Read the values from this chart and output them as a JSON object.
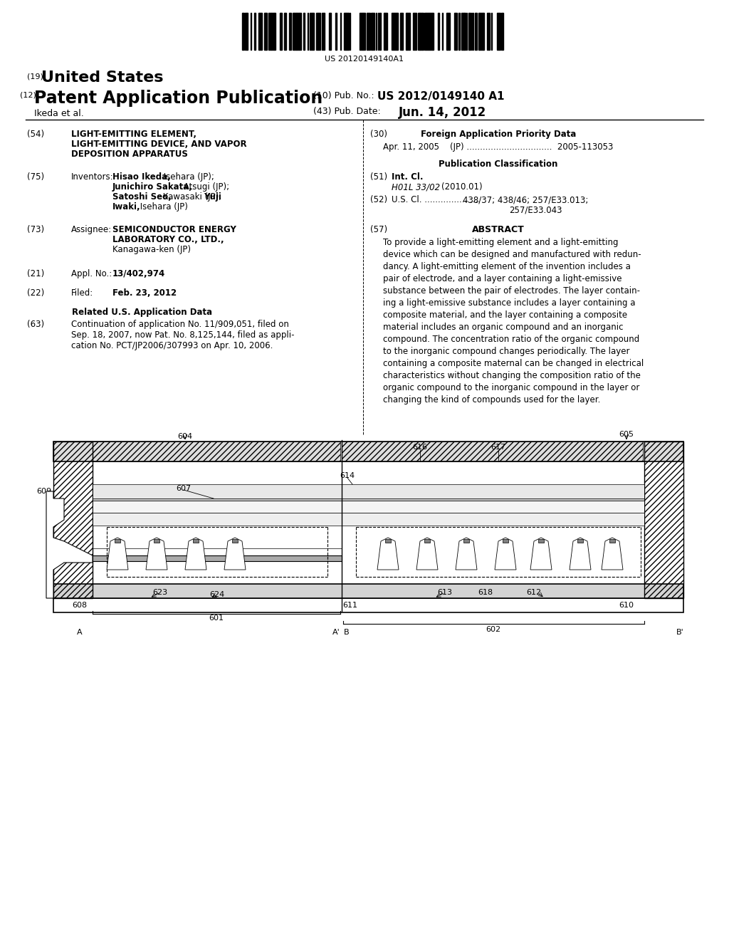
{
  "background_color": "#ffffff",
  "barcode_text": "US 20120149140A1",
  "patent_number_label": "(19)",
  "patent_number_text": "United States",
  "pub_type_label": "(12)",
  "pub_type_text": "Patent Application Publication",
  "pub_no_label": "(10) Pub. No.:",
  "pub_no_value": "US 2012/0149140 A1",
  "authors_label": "Ikeda et al.",
  "pub_date_label": "(43) Pub. Date:",
  "pub_date_value": "Jun. 14, 2012",
  "title_label": "(54)",
  "title_text": "LIGHT-EMITTING ELEMENT,\nLIGHT-EMITTING DEVICE, AND VAPOR\nDEPOSITION APPARATUS",
  "foreign_app_label": "(30)",
  "foreign_app_title": "Foreign Application Priority Data",
  "foreign_app_entry": "Apr. 11, 2005    (JP) ................................  2005-113053",
  "pub_class_title": "Publication Classification",
  "intcl_label": "(51) Int. Cl.",
  "intcl_value": "H01L 33/02",
  "intcl_date": "(2010.01)",
  "uscl_label": "(52) U.S. Cl. .....................",
  "uscl_value": "438/37; 438/46; 257/E33.013;\n                                          257/E33.043",
  "abstract_label": "(57)",
  "abstract_title": "ABSTRACT",
  "abstract_text": "To provide a light-emitting element and a light-emitting\ndevice which can be designed and manufactured with redun-\ndancy. A light-emitting element of the invention includes a\npair of electrode, and a layer containing a light-emissive\nsubstance between the pair of electrodes. The layer contain-\ning a light-emissive substance includes a layer containing a\ncomposite material, and the layer containing a composite\nmaterial includes an organic compound and an inorganic\ncompound. The concentration ratio of the organic compound\nto the inorganic compound changes periodically. The layer\ncontaining a composite maternal can be changed in electrical\ncharacteristics without changing the composition ratio of the\norganic compound to the inorganic compound in the layer or\nchanging the kind of compounds used for the layer.",
  "inventors_label": "(75)",
  "inventors_title": "Inventors:",
  "inventors_text": "Hisao Ikeda, Isehara (JP);\nJunichiro Sakata, Atsugi (JP);\nSatoshi Seo, Kawasaki (JP); Yuji\nIwaki, Isehara (JP)",
  "assignee_label": "(73)",
  "assignee_title": "Assignee:",
  "assignee_text": "SEMICONDUCTOR ENERGY\nLABORATORY CO., LTD.,\nKanagawa-ken (JP)",
  "appl_label": "(21)",
  "appl_title": "Appl. No.:",
  "appl_value": "13/402,974",
  "filed_label": "(22)",
  "filed_title": "Filed:",
  "filed_value": "Feb. 23, 2012",
  "related_title": "Related U.S. Application Data",
  "related_text": "Continuation of application No. 11/909,051, filed on\nSep. 18, 2007, now Pat. No. 8,125,144, filed as appli-\ncation No. PCT/JP2006/307993 on Apr. 10, 2006.",
  "related_label": "(63)"
}
